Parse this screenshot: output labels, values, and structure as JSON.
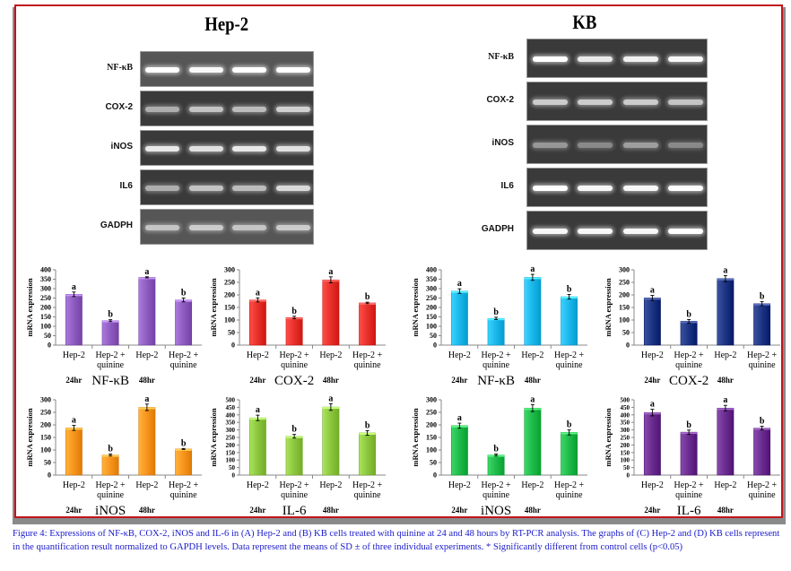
{
  "panels": {
    "left_title": "Hep-2",
    "right_title": "KB"
  },
  "gels": {
    "left": {
      "rows": [
        {
          "label": "NF-κB",
          "bands": [
            1.0,
            0.95,
            1.0,
            1.0
          ],
          "bg": "light"
        },
        {
          "label": "COX-2",
          "bands": [
            0.45,
            0.6,
            0.55,
            0.7
          ],
          "bg": "dark"
        },
        {
          "label": "iNOS",
          "bands": [
            0.85,
            0.8,
            0.85,
            0.8
          ],
          "bg": "dark"
        },
        {
          "label": "IL6",
          "bands": [
            0.45,
            0.6,
            0.55,
            0.75
          ],
          "bg": "dark"
        },
        {
          "label": "GADPH",
          "bands": [
            0.55,
            0.6,
            0.55,
            0.6
          ],
          "bg": "light"
        }
      ]
    },
    "right": {
      "rows": [
        {
          "label": "NF-κB",
          "bands": [
            1.0,
            0.85,
            0.9,
            0.95
          ],
          "bg": "dark"
        },
        {
          "label": "COX-2",
          "bands": [
            0.65,
            0.65,
            0.65,
            0.6
          ],
          "bg": "dark"
        },
        {
          "label": "iNOS",
          "bands": [
            0.3,
            0.2,
            0.35,
            0.2
          ],
          "bg": "dark"
        },
        {
          "label": "IL6",
          "bands": [
            1.0,
            0.95,
            0.95,
            1.0
          ],
          "bg": "dark"
        },
        {
          "label": "GADPH",
          "bands": [
            0.95,
            0.95,
            0.95,
            1.0
          ],
          "bg": "dark"
        }
      ]
    }
  },
  "chart_data": [
    {
      "id": "hep2-nfkb",
      "type": "bar",
      "title": "NF-κB",
      "cell_line": "Hep-2",
      "ylabel": "mRNA expression",
      "ylim": [
        0,
        400
      ],
      "yticks": [
        0,
        50,
        100,
        150,
        200,
        250,
        300,
        350,
        400
      ],
      "categories": [
        "Hep-2",
        "Hep-2 + quinine",
        "Hep-2",
        "Hep-2 + quinine"
      ],
      "groups": [
        "24hr",
        "48hr"
      ],
      "values": [
        270,
        130,
        360,
        240
      ],
      "errors": [
        12,
        5,
        3,
        10
      ],
      "significance": [
        "a",
        "b",
        "a",
        "b"
      ],
      "color": "#8e5cc0"
    },
    {
      "id": "hep2-cox2",
      "type": "bar",
      "title": "COX-2",
      "cell_line": "Hep-2",
      "ylabel": "mRNA expression",
      "ylim": [
        0,
        300
      ],
      "yticks": [
        0,
        50,
        100,
        150,
        200,
        250,
        300
      ],
      "categories": [
        "Hep-2",
        "Hep-2 + quinine",
        "Hep-2",
        "Hep-2 + quinine"
      ],
      "groups": [
        "24hr",
        "48hr"
      ],
      "values": [
        180,
        110,
        260,
        168
      ],
      "errors": [
        8,
        5,
        12,
        3
      ],
      "significance": [
        "a",
        "b",
        "a",
        "b"
      ],
      "color": "#e8302a"
    },
    {
      "id": "kb-nfkb",
      "type": "bar",
      "title": "NF-κB",
      "cell_line": "KB",
      "ylabel": "mRNA expression",
      "ylim": [
        0,
        400
      ],
      "yticks": [
        0,
        50,
        100,
        150,
        200,
        250,
        300,
        350,
        400
      ],
      "categories": [
        "Hep-2",
        "Hep-2 + quinine",
        "Hep-2",
        "Hep-2 + quinine"
      ],
      "groups": [
        "24hr",
        "48hr"
      ],
      "values": [
        287,
        142,
        360,
        257
      ],
      "errors": [
        12,
        6,
        16,
        12
      ],
      "significance": [
        "a",
        "b",
        "a",
        "b"
      ],
      "color": "#1bb6ea"
    },
    {
      "id": "kb-cox2",
      "type": "bar",
      "title": "COX-2",
      "cell_line": "KB",
      "ylabel": "mRNA expression",
      "ylim": [
        0,
        300
      ],
      "yticks": [
        0,
        50,
        100,
        150,
        200,
        250,
        300
      ],
      "categories": [
        "Hep-2",
        "Hep-2 + quinine",
        "Hep-2",
        "Hep-2 + quinine"
      ],
      "groups": [
        "24hr",
        "48hr"
      ],
      "values": [
        188,
        95,
        265,
        165
      ],
      "errors": [
        10,
        7,
        12,
        8
      ],
      "significance": [
        "a",
        "b",
        "a",
        "b"
      ],
      "color": "#1c3482"
    },
    {
      "id": "hep2-inos",
      "type": "bar",
      "title": "iNOS",
      "cell_line": "Hep-2",
      "ylabel": "mRNA expression",
      "ylim": [
        0,
        300
      ],
      "yticks": [
        0,
        50,
        100,
        150,
        200,
        250,
        300
      ],
      "categories": [
        "Hep-2",
        "Hep-2 + quinine",
        "Hep-2",
        "Hep-2 + quinine"
      ],
      "groups": [
        "24hr",
        "48hr"
      ],
      "values": [
        188,
        80,
        270,
        104
      ],
      "errors": [
        10,
        4,
        13,
        2
      ],
      "significance": [
        "a",
        "b",
        "a",
        "b"
      ],
      "color": "#f7941d"
    },
    {
      "id": "hep2-il6",
      "type": "bar",
      "title": "IL-6",
      "cell_line": "Hep-2",
      "ylabel": "mRNA expression",
      "ylim": [
        0,
        500
      ],
      "yticks": [
        0,
        50,
        100,
        150,
        200,
        250,
        300,
        350,
        400,
        450,
        500
      ],
      "categories": [
        "Hep-2",
        "Hep-2 + quinine",
        "Hep-2",
        "Hep-2 + quinine"
      ],
      "groups": [
        "24hr",
        "48hr"
      ],
      "values": [
        380,
        258,
        452,
        280
      ],
      "errors": [
        18,
        12,
        22,
        15
      ],
      "significance": [
        "a",
        "b",
        "a",
        "b"
      ],
      "color": "#8cc63e"
    },
    {
      "id": "kb-inos",
      "type": "bar",
      "title": "iNOS",
      "cell_line": "KB",
      "ylabel": "mRNA expression",
      "ylim": [
        0,
        300
      ],
      "yticks": [
        0,
        50,
        100,
        150,
        200,
        250,
        300
      ],
      "categories": [
        "Hep-2",
        "Hep-2 + quinine",
        "Hep-2",
        "Hep-2 + quinine"
      ],
      "groups": [
        "24hr",
        "48hr"
      ],
      "values": [
        197,
        80,
        267,
        170
      ],
      "errors": [
        10,
        4,
        14,
        10
      ],
      "significance": [
        "a",
        "b",
        "a",
        "b"
      ],
      "color": "#1fba4a"
    },
    {
      "id": "kb-il6",
      "type": "bar",
      "title": "IL-6",
      "cell_line": "KB",
      "ylabel": "mRNA expression",
      "ylim": [
        0,
        500
      ],
      "yticks": [
        0,
        50,
        100,
        150,
        200,
        250,
        300,
        350,
        400,
        450,
        500
      ],
      "categories": [
        "Hep-2",
        "Hep-2 + quinine",
        "Hep-2",
        "Hep-2 + quinine"
      ],
      "groups": [
        "24hr",
        "48hr"
      ],
      "values": [
        415,
        285,
        445,
        312
      ],
      "errors": [
        22,
        14,
        18,
        12
      ],
      "significance": [
        "a",
        "b",
        "a",
        "b"
      ],
      "color": "#6a2c8e"
    }
  ],
  "caption": "Figure 4: Expressions of NF-κB, COX-2, iNOS and IL-6 in (A) Hep-2 and (B) KB cells treated with quinine at 24 and 48 hours by RT-PCR analysis. The graphs of (C) Hep-2 and (D) KB cells represent in the quantification result normalized to GAPDH levels. Data represent the means of SD ± of three individual experiments. * Significantly different from control cells (p<0.05)"
}
